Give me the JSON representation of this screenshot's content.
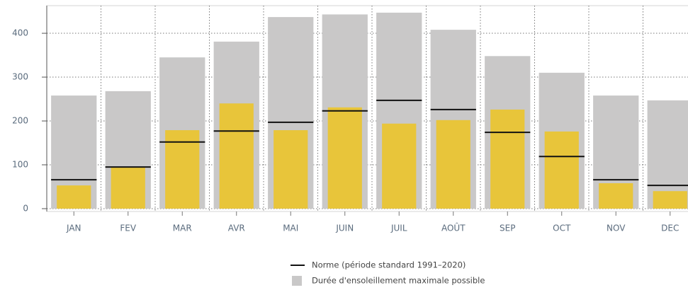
{
  "chart_data": {
    "type": "bar",
    "categories": [
      "JAN",
      "FEV",
      "MAR",
      "AVR",
      "MAI",
      "JUIN",
      "JUIL",
      "AOÛT",
      "SEP",
      "OCT",
      "NOV",
      "DEC"
    ],
    "series": [
      {
        "name": "Norme (période standard 1991–2020)",
        "type": "marker",
        "color": "#111111",
        "values": [
          66,
          95,
          152,
          177,
          197,
          223,
          247,
          226,
          174,
          119,
          66,
          53
        ]
      },
      {
        "name": "Durée d'ensoleillement maximale possible",
        "type": "background-bar",
        "color": "#c9c8c8",
        "values": [
          258,
          268,
          345,
          381,
          437,
          443,
          447,
          408,
          348,
          310,
          258,
          247
        ]
      },
      {
        "type": "bar",
        "color": "#e8c53a",
        "values": [
          53,
          95,
          179,
          240,
          179,
          231,
          194,
          202,
          226,
          176,
          58,
          40
        ]
      }
    ],
    "ylim": [
      0,
      463
    ],
    "yticks": [
      0,
      100,
      200,
      300,
      400
    ],
    "grid": true
  }
}
